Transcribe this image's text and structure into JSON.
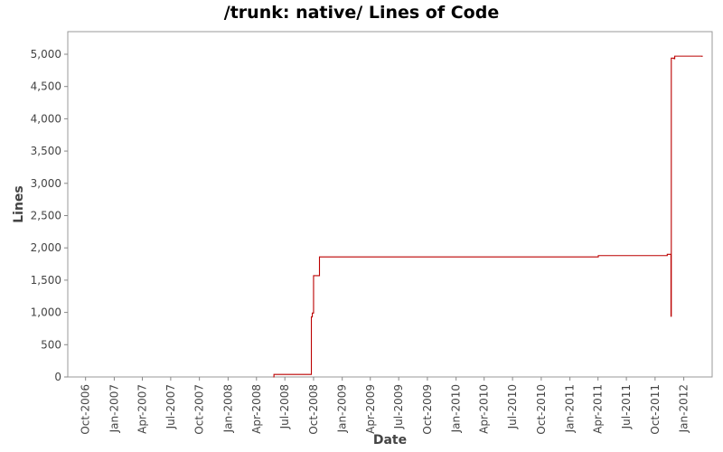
{
  "chart_data": {
    "type": "line",
    "title": "/trunk: native/ Lines of Code",
    "xlabel": "Date",
    "ylabel": "Lines",
    "x_ticks": [
      "Oct-2006",
      "Jan-2007",
      "Apr-2007",
      "Jul-2007",
      "Oct-2007",
      "Jan-2008",
      "Apr-2008",
      "Jul-2008",
      "Oct-2008",
      "Jan-2009",
      "Apr-2009",
      "Jul-2009",
      "Oct-2009",
      "Jan-2010",
      "Apr-2010",
      "Jul-2010",
      "Oct-2010",
      "Jan-2011",
      "Apr-2011",
      "Jul-2011",
      "Oct-2011",
      "Jan-2012"
    ],
    "y_ticks": [
      "0",
      "500",
      "1,000",
      "1,500",
      "2,000",
      "2,500",
      "3,000",
      "3,500",
      "4,000",
      "4,500",
      "5,000"
    ],
    "xlim": [
      "2006-08-05",
      "2012-04-01"
    ],
    "ylim": [
      0,
      5350
    ],
    "grid": false,
    "series": [
      {
        "color": "#bb0000",
        "step": true,
        "points": [
          [
            "2008-05-25",
            0
          ],
          [
            "2008-05-27",
            40
          ],
          [
            "2008-09-23",
            40
          ],
          [
            "2008-09-24",
            930
          ],
          [
            "2008-09-27",
            990
          ],
          [
            "2008-09-30",
            990
          ],
          [
            "2008-10-01",
            1570
          ],
          [
            "2008-10-18",
            1570
          ],
          [
            "2008-10-20",
            1860
          ],
          [
            "2011-03-31",
            1860
          ],
          [
            "2011-04-02",
            1880
          ],
          [
            "2011-11-07",
            1880
          ],
          [
            "2011-11-09",
            1900
          ],
          [
            "2011-11-20",
            1900
          ],
          [
            "2011-11-21",
            940
          ],
          [
            "2011-11-22",
            4940
          ],
          [
            "2011-12-01",
            4930
          ],
          [
            "2011-12-03",
            4970
          ],
          [
            "2012-02-29",
            4960
          ]
        ]
      }
    ]
  }
}
